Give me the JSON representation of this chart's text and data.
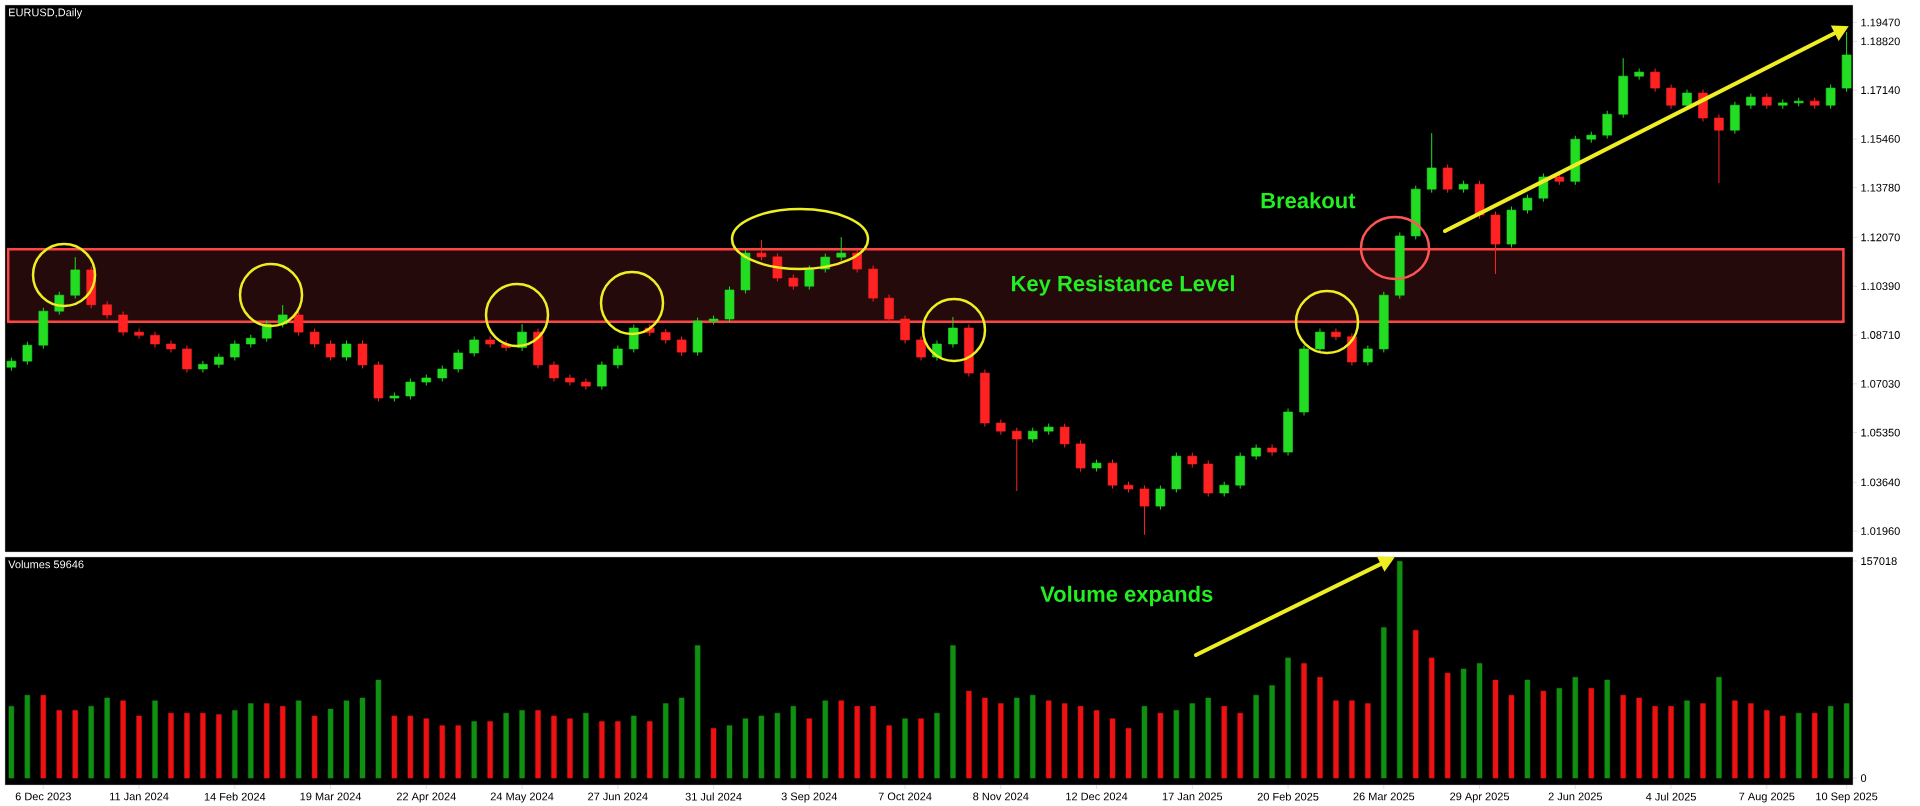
{
  "chart_data": [
    {
      "type": "candlestick",
      "title": "EURUSD,Daily",
      "categories": [
        null,
        null,
        null,
        null,
        null,
        null,
        null,
        null,
        null,
        null,
        null,
        null,
        null,
        null,
        null,
        null,
        null,
        null,
        null,
        null,
        null,
        null,
        null,
        null,
        null,
        null,
        null,
        null,
        null,
        null,
        null,
        null,
        null,
        null,
        null,
        null,
        null,
        null,
        null,
        null,
        null,
        null,
        null,
        null,
        null,
        null,
        null,
        null,
        null,
        null,
        null,
        null,
        null,
        null,
        null,
        null,
        null,
        null,
        null,
        null,
        null,
        null,
        null,
        null,
        null,
        null,
        null,
        null,
        null,
        null,
        null,
        null,
        null,
        null,
        null,
        null,
        null,
        null,
        null,
        null,
        null,
        null,
        null,
        null,
        null,
        null,
        null,
        null,
        null,
        null,
        null,
        null,
        null,
        null,
        null,
        null,
        null,
        null,
        null,
        null,
        null,
        null,
        null,
        null,
        null,
        null,
        null,
        null,
        null,
        null,
        null,
        null,
        null,
        null,
        null,
        null
      ],
      "ohlc": [
        [
          1.076,
          1.0793,
          1.0748,
          1.0781
        ],
        [
          1.0781,
          1.0848,
          1.0769,
          1.0836
        ],
        [
          1.0836,
          1.0965,
          1.0824,
          1.0953
        ],
        [
          1.0953,
          1.102,
          1.0941,
          1.1008
        ],
        [
          1.1008,
          1.1139,
          1.0996,
          1.1095
        ],
        [
          1.1095,
          1.1107,
          1.0963,
          1.0975
        ],
        [
          1.0975,
          1.0987,
          1.0928,
          1.094
        ],
        [
          1.094,
          1.0952,
          1.0869,
          1.0881
        ],
        [
          1.0881,
          1.0893,
          1.0858,
          1.087
        ],
        [
          1.087,
          1.0882,
          1.0828,
          1.084
        ],
        [
          1.084,
          1.0852,
          1.0811,
          1.0823
        ],
        [
          1.0823,
          1.0835,
          1.0742,
          1.0754
        ],
        [
          1.0754,
          1.0782,
          1.0742,
          1.077
        ],
        [
          1.077,
          1.0807,
          1.0758,
          1.0795
        ],
        [
          1.0795,
          1.0852,
          1.0783,
          1.084
        ],
        [
          1.084,
          1.0872,
          1.0828,
          1.086
        ],
        [
          1.086,
          1.0921,
          1.0848,
          1.0909
        ],
        [
          1.0909,
          1.0974,
          1.0897,
          1.094
        ],
        [
          1.094,
          1.0952,
          1.0869,
          1.0881
        ],
        [
          1.0881,
          1.0893,
          1.0828,
          1.084
        ],
        [
          1.084,
          1.0852,
          1.0783,
          1.0795
        ],
        [
          1.0795,
          1.0852,
          1.0783,
          1.084
        ],
        [
          1.084,
          1.0852,
          1.0756,
          1.0768
        ],
        [
          1.0768,
          1.078,
          1.0642,
          1.0654
        ],
        [
          1.0654,
          1.0673,
          1.0642,
          1.0661
        ],
        [
          1.0661,
          1.0721,
          1.0649,
          1.0709
        ],
        [
          1.0709,
          1.0735,
          1.0697,
          1.0723
        ],
        [
          1.0723,
          1.0766,
          1.0711,
          1.0754
        ],
        [
          1.0754,
          1.0821,
          1.0742,
          1.0809
        ],
        [
          1.0809,
          1.0866,
          1.0797,
          1.0854
        ],
        [
          1.0854,
          1.0866,
          1.0828,
          1.084
        ],
        [
          1.084,
          1.0852,
          1.0816,
          1.0828
        ],
        [
          1.0828,
          1.0909,
          1.0816,
          1.0881
        ],
        [
          1.0881,
          1.0893,
          1.0756,
          1.0768
        ],
        [
          1.0768,
          1.078,
          1.0711,
          1.0723
        ],
        [
          1.0723,
          1.0735,
          1.0697,
          1.0709
        ],
        [
          1.0709,
          1.0721,
          1.0683,
          1.0695
        ],
        [
          1.0695,
          1.078,
          1.0683,
          1.0768
        ],
        [
          1.0768,
          1.0835,
          1.0756,
          1.0823
        ],
        [
          1.0823,
          1.0907,
          1.0811,
          1.0895
        ],
        [
          1.0895,
          1.0907,
          1.0868,
          1.088
        ],
        [
          1.088,
          1.0892,
          1.0842,
          1.0854
        ],
        [
          1.0854,
          1.0866,
          1.08,
          1.0812
        ],
        [
          1.0812,
          1.0931,
          1.08,
          1.0919
        ],
        [
          1.0919,
          1.0938,
          1.0907,
          1.0926
        ],
        [
          1.0926,
          1.1038,
          1.0914,
          1.1026
        ],
        [
          1.1026,
          1.1165,
          1.1014,
          1.1153
        ],
        [
          1.1153,
          1.1198,
          1.1128,
          1.114
        ],
        [
          1.114,
          1.1152,
          1.1055,
          1.1067
        ],
        [
          1.1067,
          1.1079,
          1.1027,
          1.1039
        ],
        [
          1.1039,
          1.111,
          1.1027,
          1.1098
        ],
        [
          1.1098,
          1.1151,
          1.1086,
          1.1139
        ],
        [
          1.1139,
          1.1208,
          1.1127,
          1.1153
        ],
        [
          1.1153,
          1.1165,
          1.1086,
          1.1098
        ],
        [
          1.1098,
          1.111,
          1.0986,
          1.0998
        ],
        [
          1.0998,
          1.101,
          1.0914,
          1.0926
        ],
        [
          1.0926,
          1.0938,
          1.0842,
          1.0854
        ],
        [
          1.0854,
          1.0866,
          1.0783,
          1.0795
        ],
        [
          1.0795,
          1.0852,
          1.0783,
          1.084
        ],
        [
          1.084,
          1.0933,
          1.0828,
          1.0895
        ],
        [
          1.0895,
          1.0907,
          1.0728,
          1.074
        ],
        [
          1.074,
          1.0752,
          1.0556,
          1.0568
        ],
        [
          1.0568,
          1.058,
          1.0528,
          1.054
        ],
        [
          1.054,
          1.0552,
          1.0334,
          1.0513
        ],
        [
          1.0513,
          1.0552,
          1.0501,
          1.054
        ],
        [
          1.054,
          1.0566,
          1.0528,
          1.0554
        ],
        [
          1.0554,
          1.0566,
          1.0484,
          1.0496
        ],
        [
          1.0496,
          1.0508,
          1.0401,
          1.0413
        ],
        [
          1.0413,
          1.0442,
          1.0401,
          1.043
        ],
        [
          1.043,
          1.0442,
          1.0342,
          1.0354
        ],
        [
          1.0354,
          1.0366,
          1.0329,
          1.0341
        ],
        [
          1.0341,
          1.0353,
          1.0183,
          1.0282
        ],
        [
          1.0282,
          1.0353,
          1.027,
          1.0341
        ],
        [
          1.0341,
          1.0466,
          1.0329,
          1.0454
        ],
        [
          1.0454,
          1.0466,
          1.0415,
          1.0427
        ],
        [
          1.0427,
          1.0439,
          1.0315,
          1.0327
        ],
        [
          1.0327,
          1.0366,
          1.0315,
          1.0354
        ],
        [
          1.0354,
          1.0466,
          1.0342,
          1.0454
        ],
        [
          1.0454,
          1.0494,
          1.0442,
          1.0482
        ],
        [
          1.0482,
          1.0494,
          1.0456,
          1.0468
        ],
        [
          1.0468,
          1.0618,
          1.0456,
          1.0606
        ],
        [
          1.0606,
          1.0835,
          1.0594,
          1.0823
        ],
        [
          1.0823,
          1.0893,
          1.0811,
          1.0881
        ],
        [
          1.0881,
          1.0893,
          1.0853,
          1.0865
        ],
        [
          1.0865,
          1.0877,
          1.0766,
          1.0778
        ],
        [
          1.0778,
          1.0835,
          1.0766,
          1.0823
        ],
        [
          1.0823,
          1.102,
          1.0811,
          1.1008
        ],
        [
          1.1008,
          1.1224,
          1.0996,
          1.1212
        ],
        [
          1.1212,
          1.1385,
          1.12,
          1.1373
        ],
        [
          1.1373,
          1.1566,
          1.1361,
          1.1446
        ],
        [
          1.1446,
          1.1458,
          1.1361,
          1.1373
        ],
        [
          1.1373,
          1.1402,
          1.1361,
          1.139
        ],
        [
          1.139,
          1.1402,
          1.1272,
          1.1284
        ],
        [
          1.1284,
          1.1296,
          1.1081,
          1.1184
        ],
        [
          1.1184,
          1.1313,
          1.1172,
          1.1301
        ],
        [
          1.1301,
          1.1354,
          1.1289,
          1.1342
        ],
        [
          1.1342,
          1.1427,
          1.133,
          1.1415
        ],
        [
          1.1415,
          1.1427,
          1.1388,
          1.14
        ],
        [
          1.14,
          1.1557,
          1.1388,
          1.1545
        ],
        [
          1.1545,
          1.1571,
          1.1533,
          1.1559
        ],
        [
          1.1559,
          1.1643,
          1.1547,
          1.1631
        ],
        [
          1.1631,
          1.1824,
          1.1619,
          1.1762
        ],
        [
          1.1762,
          1.1788,
          1.175,
          1.1776
        ],
        [
          1.1776,
          1.1788,
          1.1709,
          1.1721
        ],
        [
          1.1721,
          1.1733,
          1.165,
          1.1662
        ],
        [
          1.1662,
          1.1716,
          1.165,
          1.1704
        ],
        [
          1.1704,
          1.1716,
          1.1606,
          1.1618
        ],
        [
          1.1618,
          1.163,
          1.1394,
          1.1576
        ],
        [
          1.1576,
          1.1674,
          1.1564,
          1.1662
        ],
        [
          1.1662,
          1.1702,
          1.165,
          1.169
        ],
        [
          1.169,
          1.1702,
          1.165,
          1.1662
        ],
        [
          1.1662,
          1.1682,
          1.165,
          1.167
        ],
        [
          1.167,
          1.1688,
          1.1658,
          1.1676
        ],
        [
          1.1676,
          1.1688,
          1.165,
          1.1662
        ],
        [
          1.1662,
          1.1733,
          1.165,
          1.1721
        ],
        [
          1.1721,
          1.1914,
          1.1709,
          1.1835
        ]
      ],
      "colors": [
        "#22dd22",
        "#22dd22",
        "#22dd22",
        "#22dd22",
        "#22dd22",
        "#ff2222",
        "#ff2222",
        "#ff2222",
        "#ff2222",
        "#ff2222",
        "#ff2222",
        "#ff2222",
        "#22dd22",
        "#22dd22",
        "#22dd22",
        "#22dd22",
        "#22dd22",
        "#22dd22",
        "#ff2222",
        "#ff2222",
        "#ff2222",
        "#22dd22",
        "#ff2222",
        "#ff2222",
        "#22dd22",
        "#22dd22",
        "#22dd22",
        "#22dd22",
        "#22dd22",
        "#22dd22",
        "#ff2222",
        "#ff2222",
        "#22dd22",
        "#ff2222",
        "#ff2222",
        "#ff2222",
        "#ff2222",
        "#22dd22",
        "#22dd22",
        "#22dd22",
        "#ff2222",
        "#ff2222",
        "#ff2222",
        "#22dd22",
        "#22dd22",
        "#22dd22",
        "#22dd22",
        "#ff2222",
        "#ff2222",
        "#ff2222",
        "#22dd22",
        "#22dd22",
        "#22dd22",
        "#ff2222",
        "#ff2222",
        "#ff2222",
        "#ff2222",
        "#ff2222",
        "#22dd22",
        "#22dd22",
        "#ff2222",
        "#ff2222",
        "#ff2222",
        "#ff2222",
        "#22dd22",
        "#22dd22",
        "#ff2222",
        "#ff2222",
        "#22dd22",
        "#ff2222",
        "#ff2222",
        "#ff2222",
        "#22dd22",
        "#22dd22",
        "#ff2222",
        "#ff2222",
        "#22dd22",
        "#22dd22",
        "#22dd22",
        "#ff2222",
        "#22dd22",
        "#22dd22",
        "#22dd22",
        "#ff2222",
        "#ff2222",
        "#22dd22",
        "#22dd22",
        "#22dd22",
        "#22dd22",
        "#22dd22",
        "#ff2222",
        "#22dd22",
        "#ff2222",
        "#ff2222",
        "#22dd22",
        "#22dd22",
        "#22dd22",
        "#ff2222",
        "#22dd22",
        "#22dd22",
        "#22dd22",
        "#22dd22",
        "#22dd22",
        "#ff2222",
        "#ff2222",
        "#22dd22",
        "#ff2222",
        "#ff2222",
        "#22dd22",
        "#22dd22",
        "#ff2222",
        "#22dd22",
        "#22dd22",
        "#ff2222",
        "#22dd22",
        "#22dd22"
      ],
      "ylim": [
        1.0124,
        1.2007
      ],
      "yticks": [
        {
          "value": 1.1947,
          "label": "1.19470"
        },
        {
          "value": 1.1882,
          "label": "1.18820"
        },
        {
          "value": 1.1714,
          "label": "1.17140"
        },
        {
          "value": 1.1546,
          "label": "1.15460"
        },
        {
          "value": 1.1378,
          "label": "1.13780"
        },
        {
          "value": 1.1207,
          "label": "1.12070"
        },
        {
          "value": 1.1039,
          "label": "1.10390"
        },
        {
          "value": 1.0871,
          "label": "1.08710"
        },
        {
          "value": 1.0703,
          "label": "1.07030"
        },
        {
          "value": 1.0535,
          "label": "1.05350"
        },
        {
          "value": 1.0364,
          "label": "1.03640"
        },
        {
          "value": 1.0196,
          "label": "1.01960"
        }
      ],
      "tick_labels": "y",
      "bands": [
        {
          "axis": "y",
          "from": 1.0917,
          "to": 1.1166,
          "label": "Key Resistance Level",
          "color": "#ff4444"
        }
      ],
      "annotations": [
        "Breakout"
      ]
    },
    {
      "type": "bar",
      "title": "Volumes 59646",
      "categories": [
        null,
        null,
        "6 Dec 2023",
        null,
        null,
        null,
        null,
        null,
        "11 Jan 2024",
        null,
        null,
        null,
        null,
        null,
        "14 Feb 2024",
        null,
        null,
        null,
        null,
        null,
        "19 Mar 2024",
        null,
        null,
        null,
        null,
        null,
        "22 Apr 2024",
        null,
        null,
        null,
        null,
        null,
        "24 May 2024",
        null,
        null,
        null,
        null,
        null,
        "27 Jun 2024",
        null,
        null,
        null,
        null,
        null,
        "31 Jul 2024",
        null,
        null,
        null,
        null,
        null,
        "3 Sep 2024",
        null,
        null,
        null,
        null,
        null,
        "7 Oct 2024",
        null,
        null,
        null,
        null,
        null,
        "8 Nov 2024",
        null,
        null,
        null,
        null,
        null,
        "12 Dec 2024",
        null,
        null,
        null,
        null,
        null,
        "17 Jan 2025",
        null,
        null,
        null,
        null,
        null,
        "20 Feb 2025",
        null,
        null,
        null,
        null,
        null,
        "26 Mar 2025",
        null,
        null,
        null,
        null,
        null,
        "29 Apr 2025",
        null,
        null,
        null,
        null,
        null,
        "2 Jun 2025",
        null,
        null,
        null,
        null,
        null,
        "4 Jul 2025",
        null,
        null,
        null,
        null,
        null,
        "7 Aug 2025",
        null,
        null,
        null,
        null,
        "10 Sep 2025"
      ],
      "values": [
        52000,
        60000,
        60000,
        49000,
        49000,
        52000,
        58000,
        56000,
        45000,
        56000,
        47000,
        47000,
        47000,
        46000,
        49000,
        54000,
        54000,
        52000,
        56000,
        45000,
        50000,
        56000,
        58000,
        71000,
        45000,
        45000,
        43000,
        38000,
        38000,
        41000,
        41000,
        47000,
        49000,
        49000,
        45000,
        43000,
        47000,
        41000,
        41000,
        45000,
        41000,
        54000,
        58000,
        96000,
        36000,
        38000,
        43000,
        45000,
        47000,
        52000,
        43000,
        56000,
        56000,
        52000,
        52000,
        38000,
        43000,
        43000,
        47000,
        96000,
        63000,
        58000,
        54000,
        58000,
        60000,
        56000,
        54000,
        52000,
        49000,
        43000,
        36000,
        52000,
        47000,
        49000,
        54000,
        58000,
        52000,
        47000,
        60000,
        67000,
        87000,
        83000,
        73000,
        56000,
        56000,
        54000,
        109000,
        157000,
        107000,
        87000,
        76000,
        79000,
        83000,
        71000,
        60000,
        71000,
        63000,
        65000,
        73000,
        65000,
        71000,
        60000,
        58000,
        52000,
        52000,
        56000,
        54000,
        73000,
        56000,
        54000,
        49000,
        45000,
        47000,
        47000,
        52000,
        54000
      ],
      "colors": [
        "#109010",
        "#109010",
        "#ee1111",
        "#ee1111",
        "#ee1111",
        "#109010",
        "#109010",
        "#ee1111",
        "#ee1111",
        "#109010",
        "#ee1111",
        "#ee1111",
        "#ee1111",
        "#ee1111",
        "#109010",
        "#109010",
        "#ee1111",
        "#ee1111",
        "#109010",
        "#ee1111",
        "#109010",
        "#109010",
        "#109010",
        "#109010",
        "#ee1111",
        "#ee1111",
        "#ee1111",
        "#ee1111",
        "#ee1111",
        "#109010",
        "#ee1111",
        "#109010",
        "#109010",
        "#ee1111",
        "#ee1111",
        "#ee1111",
        "#109010",
        "#ee1111",
        "#ee1111",
        "#109010",
        "#ee1111",
        "#109010",
        "#109010",
        "#109010",
        "#ee1111",
        "#109010",
        "#109010",
        "#109010",
        "#109010",
        "#109010",
        "#ee1111",
        "#109010",
        "#ee1111",
        "#ee1111",
        "#ee1111",
        "#ee1111",
        "#109010",
        "#ee1111",
        "#109010",
        "#109010",
        "#ee1111",
        "#ee1111",
        "#ee1111",
        "#109010",
        "#109010",
        "#ee1111",
        "#ee1111",
        "#ee1111",
        "#ee1111",
        "#ee1111",
        "#ee1111",
        "#109010",
        "#ee1111",
        "#109010",
        "#109010",
        "#109010",
        "#ee1111",
        "#ee1111",
        "#109010",
        "#109010",
        "#109010",
        "#ee1111",
        "#ee1111",
        "#ee1111",
        "#ee1111",
        "#ee1111",
        "#109010",
        "#109010",
        "#ee1111",
        "#ee1111",
        "#ee1111",
        "#109010",
        "#109010",
        "#ee1111",
        "#ee1111",
        "#109010",
        "#ee1111",
        "#109010",
        "#109010",
        "#ee1111",
        "#109010",
        "#ee1111",
        "#ee1111",
        "#ee1111",
        "#ee1111",
        "#109010",
        "#ee1111",
        "#109010",
        "#ee1111",
        "#ee1111",
        "#ee1111",
        "#ee1111",
        "#109010",
        "#ee1111",
        "#109010",
        "#109010"
      ],
      "ylim": [
        -5000,
        160000
      ],
      "yticks": [
        0,
        157018
      ],
      "annotations": [
        "Volume expands"
      ]
    }
  ]
}
